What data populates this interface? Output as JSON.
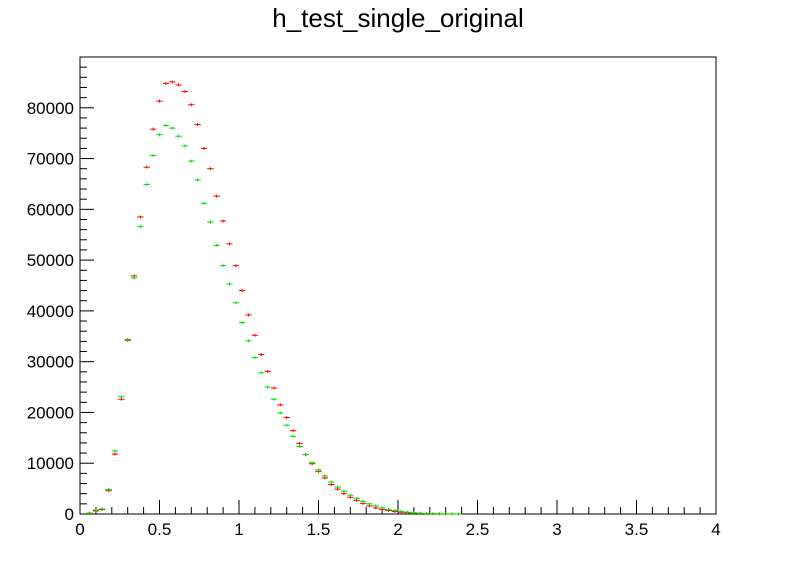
{
  "chart_data": {
    "type": "scatter",
    "title": "h_test_single_original",
    "xlabel": "",
    "ylabel": "",
    "xlim": [
      0,
      4
    ],
    "ylim": [
      0,
      90000
    ],
    "x_ticks": [
      "0",
      "0.5",
      "1",
      "1.5",
      "2",
      "2.5",
      "3",
      "3.5",
      "4"
    ],
    "y_ticks": [
      "0",
      "10000",
      "20000",
      "30000",
      "40000",
      "50000",
      "60000",
      "70000",
      "80000"
    ],
    "grid": false,
    "legend": "none",
    "bin_width": 0.04,
    "series": [
      {
        "color": "#ff0000",
        "x": [
          0.02,
          0.06,
          0.1,
          0.14,
          0.18,
          0.22,
          0.26,
          0.3,
          0.34,
          0.38,
          0.42,
          0.46,
          0.5,
          0.54,
          0.58,
          0.62,
          0.66,
          0.7,
          0.74,
          0.78,
          0.82,
          0.86,
          0.9,
          0.94,
          0.98,
          1.02,
          1.06,
          1.1,
          1.14,
          1.18,
          1.22,
          1.26,
          1.3,
          1.34,
          1.38,
          1.42,
          1.46,
          1.5,
          1.54,
          1.58,
          1.62,
          1.66,
          1.7,
          1.74,
          1.78,
          1.82,
          1.86,
          1.9,
          1.94,
          1.98,
          2.02,
          2.06,
          2.1,
          2.14,
          2.18,
          2.22,
          2.26,
          2.3,
          2.34,
          2.38,
          2.42,
          2.46,
          2.5
        ],
        "y": [
          0,
          100,
          600,
          900,
          4600,
          11800,
          22600,
          34200,
          46900,
          58500,
          68300,
          75800,
          81300,
          84800,
          85100,
          84500,
          83200,
          80600,
          76700,
          72000,
          68000,
          62600,
          57700,
          53200,
          48900,
          44000,
          39200,
          35200,
          31400,
          28100,
          24800,
          21500,
          19000,
          16400,
          13900,
          11700,
          9900,
          8400,
          7100,
          5800,
          4900,
          4000,
          3300,
          2700,
          2100,
          1600,
          1200,
          900,
          700,
          500,
          350,
          250,
          180,
          120,
          80,
          50,
          30,
          20,
          10,
          5,
          0,
          0,
          0
        ]
      },
      {
        "color": "#00e000",
        "x": [
          0.02,
          0.06,
          0.1,
          0.14,
          0.18,
          0.22,
          0.26,
          0.3,
          0.34,
          0.38,
          0.42,
          0.46,
          0.5,
          0.54,
          0.58,
          0.62,
          0.66,
          0.7,
          0.74,
          0.78,
          0.82,
          0.86,
          0.9,
          0.94,
          0.98,
          1.02,
          1.06,
          1.1,
          1.14,
          1.18,
          1.22,
          1.26,
          1.3,
          1.34,
          1.38,
          1.42,
          1.46,
          1.5,
          1.54,
          1.58,
          1.62,
          1.66,
          1.7,
          1.74,
          1.78,
          1.82,
          1.86,
          1.9,
          1.94,
          1.98,
          2.02,
          2.06,
          2.1,
          2.14,
          2.18,
          2.22,
          2.26,
          2.3,
          2.34,
          2.38,
          2.42,
          2.46,
          2.5
        ],
        "y": [
          0,
          200,
          800,
          1000,
          4800,
          12400,
          23100,
          34400,
          46500,
          56600,
          64900,
          70600,
          74700,
          76500,
          76000,
          74400,
          72500,
          69500,
          65800,
          61200,
          57500,
          52900,
          48900,
          45300,
          41600,
          37700,
          34100,
          30800,
          27800,
          25000,
          22600,
          19900,
          17500,
          15300,
          13300,
          11700,
          10100,
          8700,
          7500,
          6300,
          5300,
          4500,
          3700,
          3100,
          2500,
          2000,
          1600,
          1200,
          900,
          700,
          500,
          350,
          240,
          160,
          100,
          60,
          35,
          20,
          10,
          5,
          0,
          0,
          0
        ]
      }
    ]
  }
}
